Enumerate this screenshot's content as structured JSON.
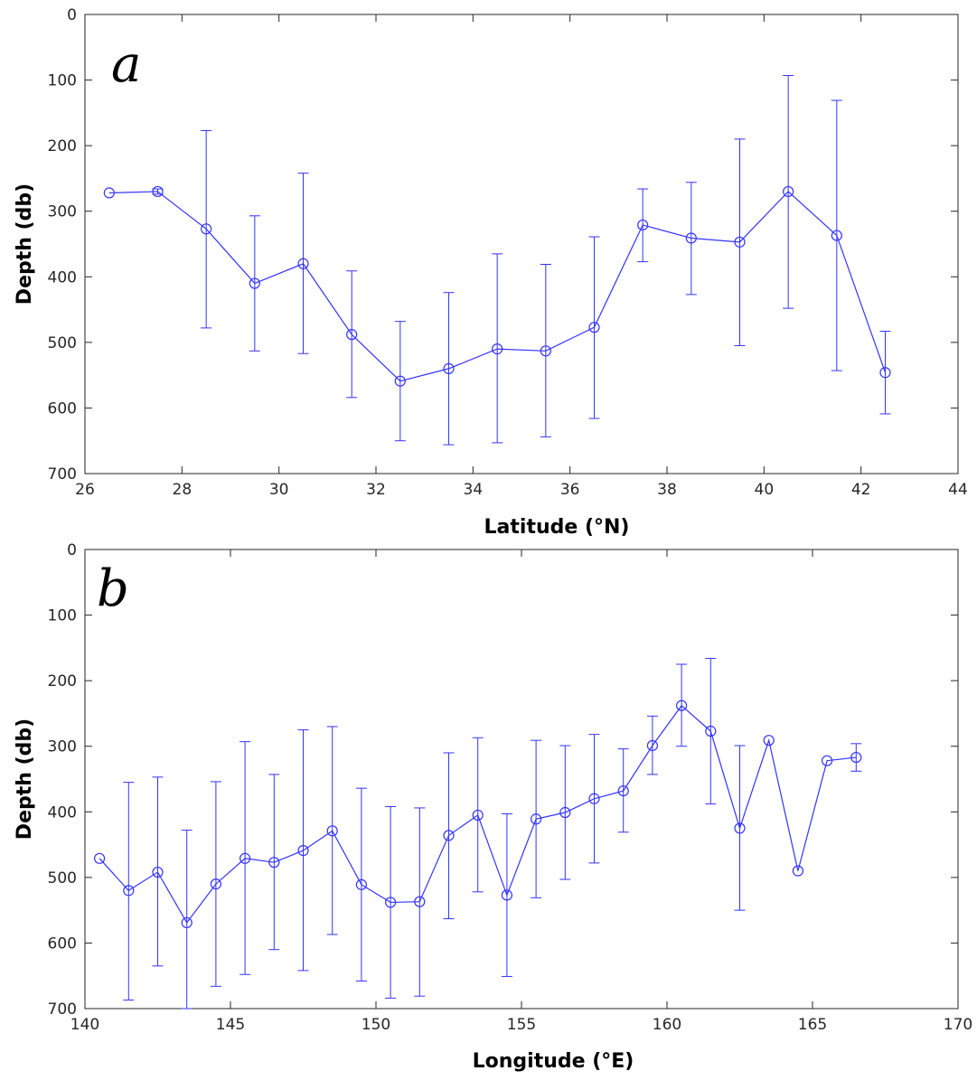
{
  "chart_data": [
    {
      "type": "line",
      "panel_label": "a",
      "xlabel": "Latitude (°N)",
      "ylabel": "Depth (db)",
      "xlim": [
        26,
        44
      ],
      "ylim": [
        0,
        700
      ],
      "y_reversed": true,
      "xticks": [
        "26",
        "28",
        "30",
        "32",
        "34",
        "36",
        "38",
        "40",
        "42",
        "44"
      ],
      "yticks": [
        "0",
        "100",
        "200",
        "300",
        "400",
        "500",
        "600",
        "700"
      ],
      "grid": false,
      "marker": "open-circle",
      "errorbars": true,
      "color": "#3333ff",
      "x": [
        26.5,
        27.5,
        28.5,
        29.5,
        30.5,
        31.5,
        32.5,
        33.5,
        34.5,
        35.5,
        36.5,
        37.5,
        38.5,
        39.5,
        40.5,
        41.5,
        42.5
      ],
      "y": [
        272,
        270,
        327,
        410,
        380,
        488,
        559,
        540,
        510,
        513,
        477,
        321,
        341,
        347,
        270,
        337,
        546
      ],
      "err_low": [
        272,
        266,
        177,
        307,
        242,
        391,
        468,
        424,
        365,
        381,
        339,
        266,
        256,
        190,
        93,
        131,
        483
      ],
      "err_high": [
        272,
        274,
        478,
        513,
        517,
        584,
        650,
        656,
        653,
        644,
        616,
        377,
        427,
        505,
        448,
        543,
        609
      ]
    },
    {
      "type": "line",
      "panel_label": "b",
      "xlabel": "Longitude (°E)",
      "ylabel": "Depth (db)",
      "xlim": [
        140,
        170
      ],
      "ylim": [
        0,
        700
      ],
      "y_reversed": true,
      "xticks": [
        "140",
        "145",
        "150",
        "155",
        "160",
        "165",
        "170"
      ],
      "yticks": [
        "0",
        "100",
        "200",
        "300",
        "400",
        "500",
        "600",
        "700"
      ],
      "grid": false,
      "marker": "open-circle",
      "errorbars": true,
      "color": "#3333ff",
      "x": [
        140.5,
        141.5,
        142.5,
        143.5,
        144.5,
        145.5,
        146.5,
        147.5,
        148.5,
        149.5,
        150.5,
        151.5,
        152.5,
        153.5,
        154.5,
        155.5,
        156.5,
        157.5,
        158.5,
        159.5,
        160.5,
        161.5,
        162.5,
        163.5,
        164.5,
        165.5,
        166.5
      ],
      "y": [
        471,
        520,
        492,
        569,
        510,
        471,
        477,
        459,
        429,
        511,
        538,
        537,
        436,
        405,
        527,
        411,
        401,
        380,
        368,
        299,
        238,
        277,
        425,
        291,
        490,
        322,
        317
      ],
      "err_low": [
        471,
        355,
        347,
        428,
        354,
        293,
        343,
        275,
        270,
        364,
        392,
        394,
        310,
        287,
        403,
        291,
        299,
        282,
        304,
        254,
        175,
        166,
        299,
        291,
        490,
        322,
        296
      ],
      "err_high": [
        471,
        687,
        635,
        700,
        666,
        648,
        610,
        642,
        587,
        658,
        684,
        681,
        563,
        522,
        651,
        531,
        503,
        478,
        431,
        343,
        300,
        388,
        550,
        291,
        490,
        322,
        338
      ]
    }
  ]
}
